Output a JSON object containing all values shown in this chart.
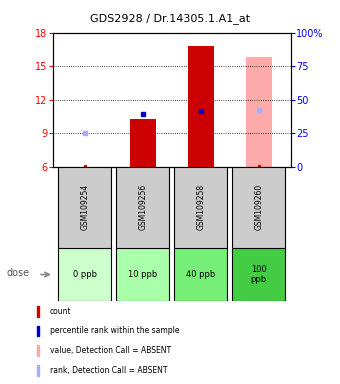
{
  "title": "GDS2928 / Dr.14305.1.A1_at",
  "samples": [
    "GSM109254",
    "GSM109256",
    "GSM109258",
    "GSM109260"
  ],
  "doses": [
    "0 ppb",
    "10 ppb",
    "40 ppb",
    "100\nppb"
  ],
  "dose_colors": [
    "#ccffcc",
    "#aaffaa",
    "#77ee77",
    "#44cc44"
  ],
  "ylim_left": [
    6,
    18
  ],
  "ylim_right": [
    0,
    100
  ],
  "yticks_left": [
    6,
    9,
    12,
    15,
    18
  ],
  "yticks_right": [
    0,
    25,
    50,
    75,
    100
  ],
  "bar_bottom": 6,
  "red_bars": [
    null,
    10.3,
    16.8,
    null
  ],
  "pink_bars": [
    null,
    null,
    null,
    15.8
  ],
  "blue_markers": [
    null,
    10.7,
    11.0,
    null
  ],
  "light_blue_markers": [
    9.0,
    null,
    null,
    11.1
  ],
  "small_red_dots": [
    6.05,
    6.05,
    6.05,
    6.05
  ],
  "bar_color_red": "#cc0000",
  "bar_color_pink": "#ffaaaa",
  "blue_color": "#0000cc",
  "light_blue_color": "#aaaaff",
  "bar_width": 0.45,
  "legend_colors": [
    "#cc0000",
    "#0000cc",
    "#ffaaaa",
    "#aaaaff"
  ],
  "legend_labels": [
    "count",
    "percentile rank within the sample",
    "value, Detection Call = ABSENT",
    "rank, Detection Call = ABSENT"
  ]
}
